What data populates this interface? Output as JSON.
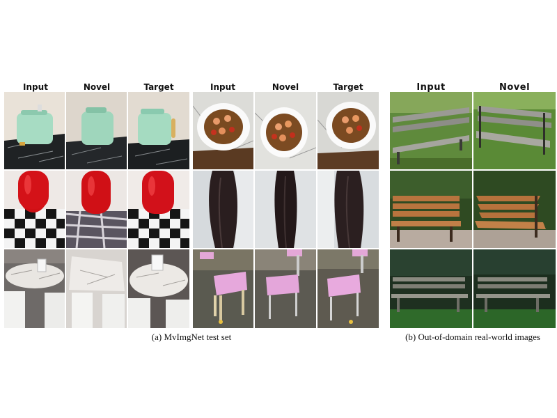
{
  "panel_a": {
    "group1_headers": [
      "Input",
      "Novel",
      "Target"
    ],
    "group2_headers": [
      "Input",
      "Novel",
      "Target"
    ],
    "caption": "(a) MvImgNet test set",
    "rows": [
      {
        "left_object": "toaster",
        "right_object": "shrimp-dish"
      },
      {
        "left_object": "red-vase",
        "right_object": "dark-garment"
      },
      {
        "left_object": "marble-table",
        "right_object": "pink-chair"
      }
    ]
  },
  "panel_b": {
    "headers": [
      "Input",
      "Novel"
    ],
    "caption": "(b) Out-of-domain real-world images",
    "rows": [
      {
        "object": "park-bench-grass"
      },
      {
        "object": "wooden-bench"
      },
      {
        "object": "park-bench-dark"
      }
    ]
  }
}
